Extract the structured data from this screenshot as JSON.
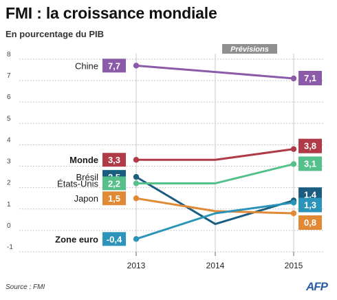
{
  "title": "FMI : la croissance mondiale",
  "subtitle": "En pourcentage du PIB",
  "source": "Source : FMI",
  "logo": "AFP",
  "chart_data": {
    "type": "line",
    "x": [
      "2013",
      "2014",
      "2015"
    ],
    "forecast_label": "Prévisions",
    "ylim": [
      -1,
      8
    ],
    "yticks": [
      -1,
      0,
      1,
      2,
      3,
      4,
      5,
      6,
      7,
      8
    ],
    "grid": true,
    "series": [
      {
        "name": "Chine",
        "values": [
          7.7,
          7.4,
          7.1
        ],
        "start_label": "7,7",
        "end_label": "7,1",
        "color": "#8b5aa8",
        "bold": false
      },
      {
        "name": "Monde",
        "values": [
          3.3,
          3.3,
          3.8
        ],
        "start_label": "3,3",
        "end_label": "3,8",
        "color": "#b03a48",
        "bold": true
      },
      {
        "name": "Brésil",
        "values": [
          2.5,
          0.3,
          1.4
        ],
        "start_label": "2,5",
        "end_label": "1,4",
        "color": "#1a5d80",
        "bold": false
      },
      {
        "name": "États-Unis",
        "values": [
          2.2,
          2.2,
          3.1
        ],
        "start_label": "2,2",
        "end_label": "3,1",
        "color": "#55c08a",
        "bold": false
      },
      {
        "name": "Japon",
        "values": [
          1.5,
          0.9,
          0.8
        ],
        "start_label": "1,5",
        "end_label": "0,8",
        "color": "#e08a35",
        "bold": false
      },
      {
        "name": "Zone euro",
        "values": [
          -0.4,
          0.8,
          1.3
        ],
        "start_label": "-0,4",
        "end_label": "1,3",
        "color": "#2b94b8",
        "bold": true
      }
    ]
  }
}
